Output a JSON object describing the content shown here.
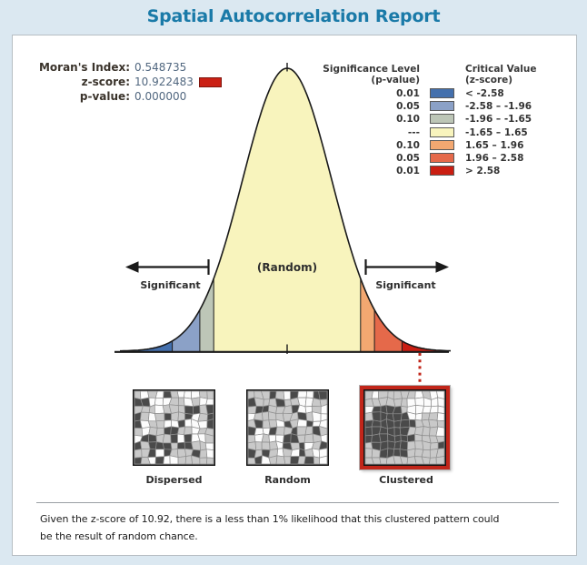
{
  "title": "Spatial Autocorrelation Report",
  "stats": {
    "morans_label": "Moran's Index:",
    "morans_value": "0.548735",
    "z_label": "z-score:",
    "z_value": "10.922483",
    "z_swatch_color": "#cb2015",
    "p_label": "p-value:",
    "p_value": "0.000000"
  },
  "legend": {
    "sig_header": "Significance Level",
    "sig_subheader": "(p-value)",
    "crit_header": "Critical Value",
    "crit_subheader": "(z-score)"
  },
  "chart_data": {
    "type": "area",
    "curve": "standard normal distribution bell curve",
    "boundaries_z": [
      -2.58,
      -1.96,
      -1.65,
      1.65,
      1.96,
      2.58
    ],
    "segments": [
      {
        "p_value": "0.01",
        "z_range": "< -2.58",
        "color": "#4470ad"
      },
      {
        "p_value": "0.05",
        "z_range": "-2.58 – -1.96",
        "color": "#8ba1c7"
      },
      {
        "p_value": "0.10",
        "z_range": "-1.96 – -1.65",
        "color": "#bdc6b7"
      },
      {
        "p_value": "---",
        "z_range": "-1.65 – 1.65",
        "color": "#f8f4bd"
      },
      {
        "p_value": "0.10",
        "z_range": "1.65 – 1.96",
        "color": "#f3a871"
      },
      {
        "p_value": "0.05",
        "z_range": "1.96 – 2.58",
        "color": "#e5694a"
      },
      {
        "p_value": "0.01",
        "z_range": "> 2.58",
        "color": "#ca1e12"
      }
    ],
    "annotations": {
      "center": "(Random)",
      "left": "Significant",
      "right": "Significant"
    },
    "highlighted": {
      "zone": "> 2.58",
      "pattern": "Clustered",
      "observed_z": 10.922483
    }
  },
  "patterns": [
    {
      "label": "Dispersed",
      "highlighted": false
    },
    {
      "label": "Random",
      "highlighted": false
    },
    {
      "label": "Clustered",
      "highlighted": true
    }
  ],
  "summary": {
    "lines": [
      "Given the z-score of 10.92, there is a less than 1% likelihood that this clustered pattern could",
      "be the result of random chance."
    ]
  },
  "colors": {
    "title": "#1a7aa8",
    "page_bg": "#dbe8f1",
    "panel_bg": "#ffffff",
    "highlight_red": "#c1261a",
    "curve_outline": "#1a1a1a"
  }
}
